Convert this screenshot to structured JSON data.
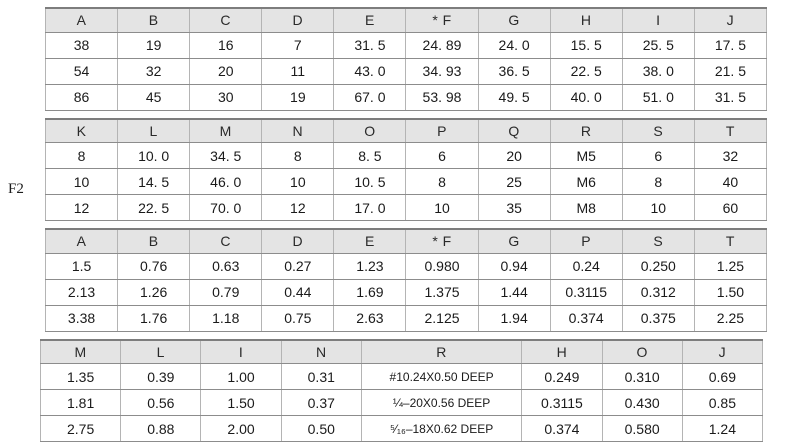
{
  "page": {
    "figure_label": "F2"
  },
  "tables": [
    {
      "name": "spec-table-metric-primary",
      "headers": [
        "A",
        "B",
        "C",
        "D",
        "E",
        "* F",
        "G",
        "H",
        "I",
        "J"
      ],
      "rows": [
        [
          "38",
          "19",
          "16",
          "7",
          "31. 5",
          "24. 89",
          "24. 0",
          "15. 5",
          "25. 5",
          "17. 5"
        ],
        [
          "54",
          "32",
          "20",
          "11",
          "43. 0",
          "34. 93",
          "36. 5",
          "22. 5",
          "38. 0",
          "21. 5"
        ],
        [
          "86",
          "45",
          "30",
          "19",
          "67. 0",
          "53. 98",
          "49. 5",
          "40. 0",
          "51. 0",
          "31. 5"
        ]
      ]
    },
    {
      "name": "spec-table-metric-secondary",
      "headers": [
        "K",
        "L",
        "M",
        "N",
        "O",
        "P",
        "Q",
        "R",
        "S",
        "T"
      ],
      "rows": [
        [
          "8",
          "10. 0",
          "34. 5",
          "8",
          "8. 5",
          "6",
          "20",
          "M5",
          "6",
          "32"
        ],
        [
          "10",
          "14. 5",
          "46. 0",
          "10",
          "10. 5",
          "8",
          "25",
          "M6",
          "8",
          "40"
        ],
        [
          "12",
          "22. 5",
          "70. 0",
          "12",
          "17. 0",
          "10",
          "35",
          "M8",
          "10",
          "60"
        ]
      ]
    },
    {
      "name": "spec-table-inch-primary",
      "headers": [
        "A",
        "B",
        "C",
        "D",
        "E",
        "* F",
        "G",
        "P",
        "S",
        "T"
      ],
      "rows": [
        [
          "1.5",
          "0.76",
          "0.63",
          "0.27",
          "1.23",
          "0.980",
          "0.94",
          "0.24",
          "0.250",
          "1.25"
        ],
        [
          "2.13",
          "1.26",
          "0.79",
          "0.44",
          "1.69",
          "1.375",
          "1.44",
          "0.3115",
          "0.312",
          "1.50"
        ],
        [
          "3.38",
          "1.76",
          "1.18",
          "0.75",
          "2.63",
          "2.125",
          "1.94",
          "0.374",
          "0.375",
          "2.25"
        ]
      ]
    },
    {
      "name": "spec-table-inch-tapped",
      "headers": [
        "M",
        "L",
        "I",
        "N",
        "R",
        "H",
        "O",
        "J"
      ],
      "col_widths": [
        11.2,
        11.2,
        11.2,
        11.2,
        22.4,
        11.2,
        11.2,
        11.2
      ],
      "small_col": 4,
      "rows": [
        [
          "1.35",
          "0.39",
          "1.00",
          "0.31",
          "#10.24X0.50 DEEP",
          "0.249",
          "0.310",
          "0.69"
        ],
        [
          "1.81",
          "0.56",
          "1.50",
          "0.37",
          "¼–20X0.56 DEEP",
          "0.3115",
          "0.430",
          "0.85"
        ],
        [
          "2.75",
          "0.88",
          "2.00",
          "0.50",
          "⁵⁄₁₆–18X0.62 DEEP",
          "0.374",
          "0.580",
          "1.24"
        ]
      ]
    }
  ]
}
